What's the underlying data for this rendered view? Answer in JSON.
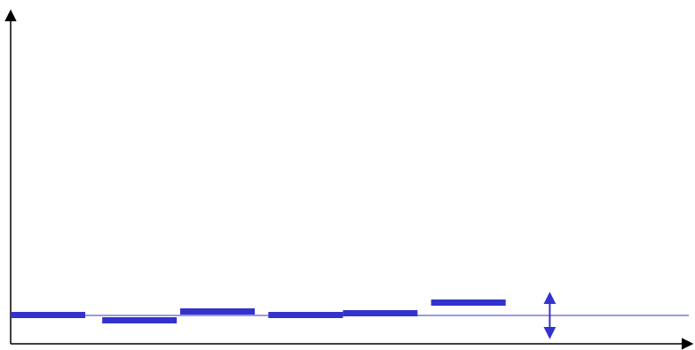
{
  "colors": {
    "axis": "#000000",
    "segments": "#3333cc",
    "reference_line": "#3333cc",
    "background": "#ffffff"
  },
  "chart_data": {
    "type": "step-segments",
    "xlim": [
      0,
      10
    ],
    "ylim": [
      0,
      10
    ],
    "reference_level": 1.0,
    "segments": [
      {
        "x_start": 0.0,
        "x_end": 1.1,
        "y": 1.0
      },
      {
        "x_start": 1.35,
        "x_end": 2.45,
        "y": 0.85
      },
      {
        "x_start": 2.5,
        "x_end": 3.6,
        "y": 1.1
      },
      {
        "x_start": 3.8,
        "x_end": 4.9,
        "y": 1.0
      },
      {
        "x_start": 4.9,
        "x_end": 6.0,
        "y": 1.05
      },
      {
        "x_start": 6.2,
        "x_end": 7.3,
        "y": 1.35
      }
    ],
    "deviation_marker": {
      "x": 7.95,
      "y_low": 0.3,
      "y_high": 1.7,
      "icon": "double-arrow-icon"
    }
  }
}
